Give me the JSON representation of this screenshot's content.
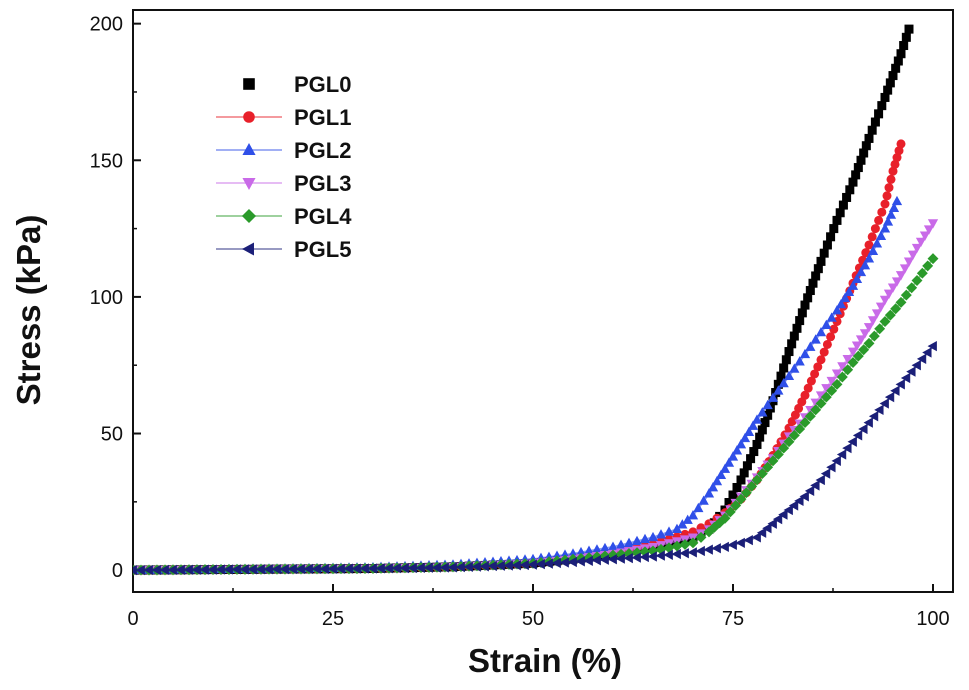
{
  "chart_data": {
    "type": "scatter",
    "xlabel": "Strain (%)",
    "ylabel": "Stress (kPa)",
    "xlim": [
      0,
      102.5
    ],
    "ylim": [
      -8,
      205
    ],
    "xticks": [
      0,
      25,
      50,
      75,
      100
    ],
    "yticks": [
      0,
      50,
      100,
      150,
      200
    ],
    "grid": false,
    "legend_position": "top-left",
    "series": [
      {
        "name": "PGL0",
        "color": "#000000",
        "marker": "square",
        "x": [
          0,
          10,
          20,
          30,
          40,
          50,
          55,
          60,
          65,
          70,
          72,
          74,
          76,
          78,
          80,
          82,
          84,
          86,
          88,
          90,
          92,
          94,
          95,
          96,
          97
        ],
        "y": [
          0,
          0.2,
          0.4,
          0.6,
          1.2,
          2.5,
          4,
          6,
          8.5,
          12,
          15,
          22,
          33,
          46,
          62,
          80,
          97,
          113,
          128,
          142,
          158,
          173,
          181,
          189,
          198
        ]
      },
      {
        "name": "PGL1",
        "color": "#e8202a",
        "marker": "circle",
        "x": [
          0,
          10,
          20,
          30,
          40,
          50,
          55,
          60,
          65,
          70,
          72,
          74,
          76,
          78,
          80,
          82,
          84,
          86,
          88,
          90,
          92,
          94,
          95,
          96
        ],
        "y": [
          0,
          0.2,
          0.4,
          0.6,
          1.2,
          2.5,
          4,
          6.5,
          9.5,
          14,
          17,
          21,
          26,
          33,
          42,
          52,
          64,
          77,
          91,
          105,
          119,
          134,
          146,
          156
        ]
      },
      {
        "name": "PGL2",
        "color": "#2f4fe8",
        "marker": "triangle-up",
        "x": [
          0,
          10,
          20,
          30,
          40,
          50,
          55,
          60,
          65,
          68,
          70,
          72,
          74,
          76,
          78,
          80,
          82,
          84,
          86,
          88,
          90,
          92,
          94,
          95.5
        ],
        "y": [
          0,
          0.3,
          0.6,
          1,
          2,
          4,
          6,
          8.5,
          12,
          15,
          20,
          28,
          37,
          46,
          55,
          63,
          71,
          79,
          87,
          95,
          104,
          114,
          125,
          135
        ]
      },
      {
        "name": "PGL3",
        "color": "#c96ae8",
        "marker": "triangle-down",
        "x": [
          0,
          10,
          20,
          30,
          40,
          50,
          55,
          60,
          65,
          70,
          72,
          74,
          76,
          78,
          80,
          82,
          84,
          86,
          88,
          90,
          92,
          94,
          96,
          98,
          100
        ],
        "y": [
          0,
          0.2,
          0.4,
          0.6,
          1.2,
          2.5,
          4,
          6,
          8.5,
          12,
          15,
          20,
          27,
          34,
          41,
          49,
          56,
          64,
          72,
          80,
          89,
          99,
          108,
          118,
          127
        ]
      },
      {
        "name": "PGL4",
        "color": "#2a9a2a",
        "marker": "diamond",
        "x": [
          0,
          10,
          20,
          30,
          40,
          50,
          55,
          60,
          65,
          70,
          72,
          74,
          76,
          78,
          80,
          82,
          84,
          86,
          88,
          90,
          92,
          94,
          96,
          98,
          100
        ],
        "y": [
          0,
          0.2,
          0.4,
          0.6,
          1.2,
          2.5,
          4,
          5.5,
          7,
          10,
          14,
          19,
          26,
          33,
          40,
          47,
          54,
          61,
          68,
          76,
          83,
          91,
          98,
          106,
          114
        ]
      },
      {
        "name": "PGL5",
        "color": "#1b1f78",
        "marker": "triangle-left",
        "x": [
          0,
          10,
          20,
          30,
          40,
          50,
          55,
          60,
          65,
          70,
          72,
          74,
          76,
          78,
          80,
          82,
          84,
          86,
          88,
          90,
          92,
          94,
          96,
          98,
          100
        ],
        "y": [
          0,
          0.2,
          0.4,
          0.6,
          1,
          2,
          3,
          4,
          5,
          6.5,
          7.5,
          8.5,
          10,
          12,
          17,
          22,
          27,
          33,
          40,
          47,
          54,
          61,
          68,
          75,
          82
        ]
      }
    ]
  }
}
